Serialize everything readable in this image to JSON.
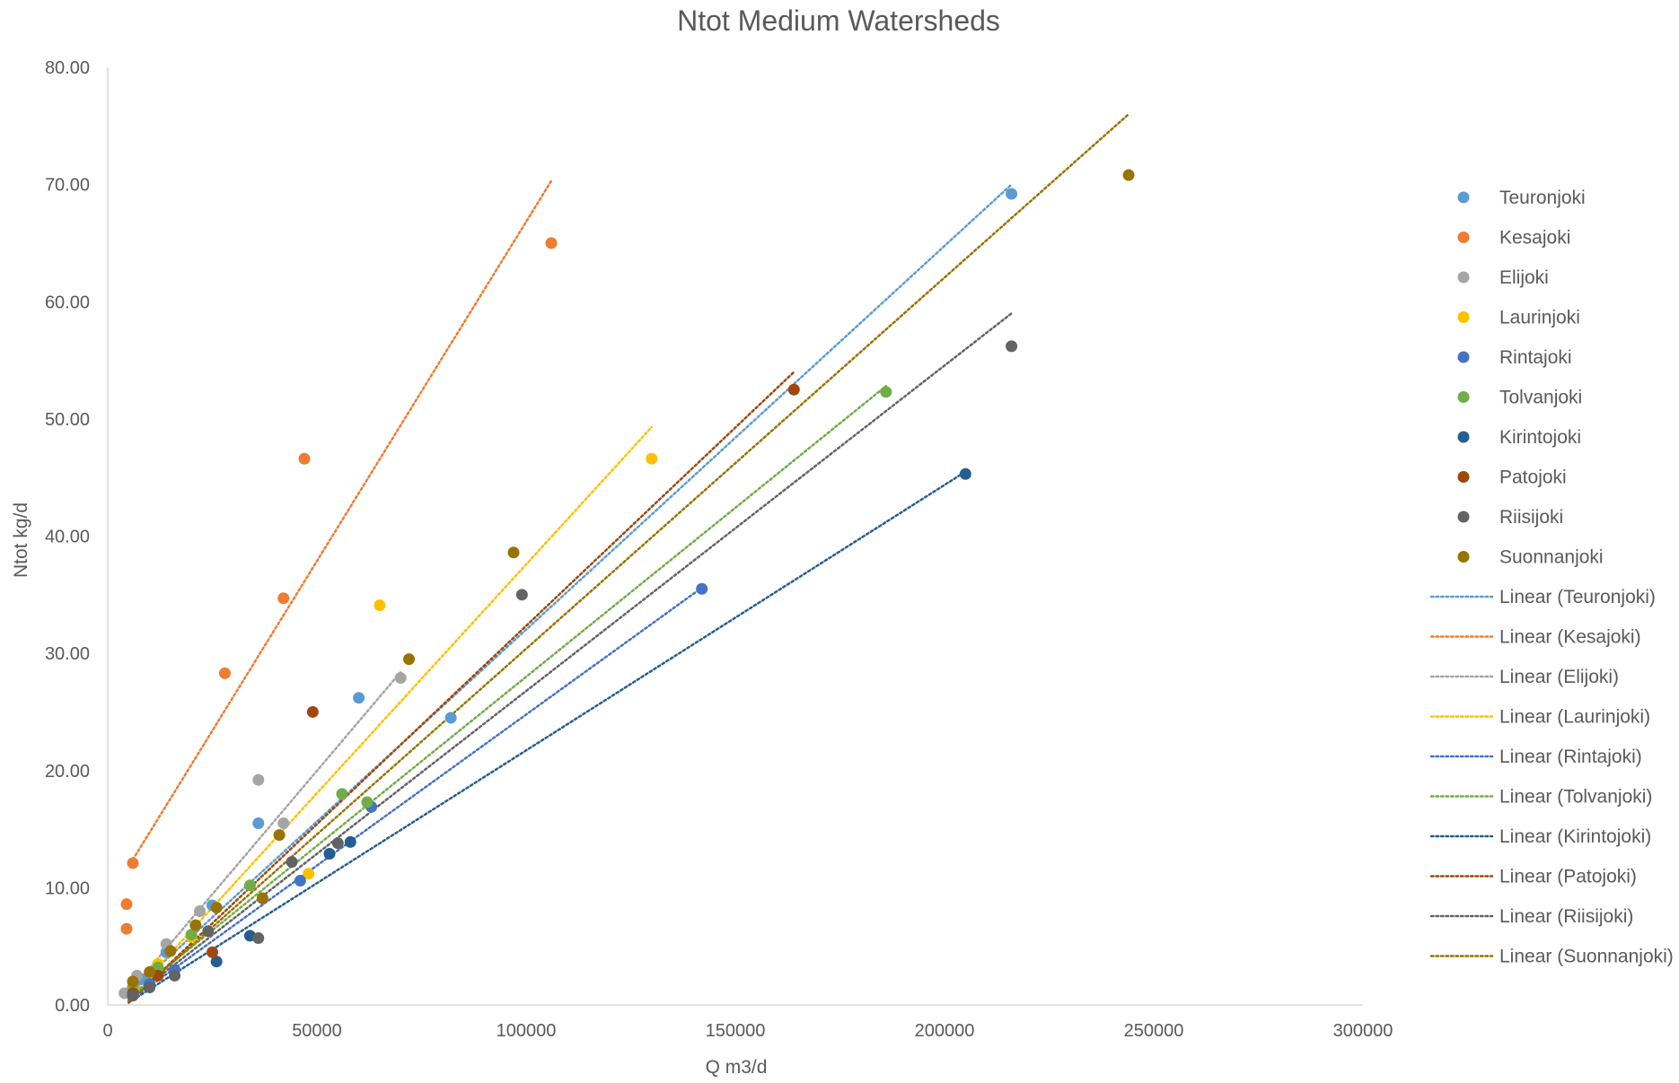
{
  "chart_data": {
    "type": "scatter",
    "title": "Ntot Medium Watersheds",
    "xlabel": "Q m3/d",
    "ylabel": "Ntot kg/d",
    "xlim": [
      0,
      300000
    ],
    "ylim": [
      0,
      80
    ],
    "xticks": [
      "0",
      "50000",
      "100000",
      "150000",
      "200000",
      "250000",
      "300000"
    ],
    "yticks": [
      "0.00",
      "10.00",
      "20.00",
      "30.00",
      "40.00",
      "50.00",
      "60.00",
      "70.00",
      "80.00"
    ],
    "grid": false,
    "legend_position": "right",
    "series": [
      {
        "name": "Teuronjoki",
        "color": "#5B9BD5",
        "points": [
          [
            216000,
            69.2
          ],
          [
            60000,
            26.2
          ],
          [
            82000,
            24.5
          ],
          [
            36000,
            15.5
          ],
          [
            25000,
            8.5
          ],
          [
            14000,
            4.5
          ],
          [
            8000,
            2.2
          ],
          [
            5000,
            1.0
          ]
        ],
        "trend": {
          "x0": 4000,
          "y0": 0.6,
          "x1": 216000,
          "y1": 70.0
        }
      },
      {
        "name": "Kesajoki",
        "color": "#ED7D31",
        "points": [
          [
            106000,
            65.0
          ],
          [
            47000,
            46.6
          ],
          [
            42000,
            34.7
          ],
          [
            28000,
            28.3
          ],
          [
            6000,
            12.1
          ],
          [
            4500,
            8.6
          ],
          [
            4500,
            6.5
          ]
        ],
        "trend": {
          "x0": 6000,
          "y0": 12.4,
          "x1": 106000,
          "y1": 70.3
        }
      },
      {
        "name": "Elijoki",
        "color": "#A5A5A5",
        "points": [
          [
            70000,
            27.9
          ],
          [
            36000,
            19.2
          ],
          [
            42000,
            15.5
          ],
          [
            22000,
            8.0
          ],
          [
            14000,
            5.2
          ],
          [
            7000,
            2.5
          ],
          [
            4000,
            1.0
          ]
        ],
        "trend": {
          "x0": 4000,
          "y0": 0.6,
          "x1": 70000,
          "y1": 28.4
        }
      },
      {
        "name": "Laurinjoki",
        "color": "#FFC000",
        "points": [
          [
            130000,
            46.6
          ],
          [
            65000,
            34.1
          ],
          [
            48000,
            11.2
          ],
          [
            20000,
            5.8
          ],
          [
            12000,
            3.5
          ],
          [
            6000,
            1.5
          ]
        ],
        "trend": {
          "x0": 5000,
          "y0": 0.5,
          "x1": 130000,
          "y1": 49.3
        }
      },
      {
        "name": "Rintajoki",
        "color": "#4472C4",
        "points": [
          [
            142000,
            35.5
          ],
          [
            63000,
            16.9
          ],
          [
            46000,
            10.6
          ],
          [
            16000,
            3.0
          ],
          [
            10000,
            1.8
          ],
          [
            6000,
            0.8
          ]
        ],
        "trend": {
          "x0": 5000,
          "y0": 0.3,
          "x1": 142000,
          "y1": 35.6
        }
      },
      {
        "name": "Tolvanjoki",
        "color": "#70AD47",
        "points": [
          [
            186000,
            52.3
          ],
          [
            56000,
            18.0
          ],
          [
            62000,
            17.3
          ],
          [
            34000,
            10.2
          ],
          [
            20000,
            6.0
          ],
          [
            12000,
            3.2
          ],
          [
            6000,
            1.5
          ]
        ],
        "trend": {
          "x0": 5000,
          "y0": 0.6,
          "x1": 186000,
          "y1": 52.8
        }
      },
      {
        "name": "Kirintojoki",
        "color": "#255E91",
        "points": [
          [
            205000,
            45.3
          ],
          [
            58000,
            13.9
          ],
          [
            53000,
            12.9
          ],
          [
            34000,
            5.9
          ],
          [
            26000,
            3.7
          ],
          [
            10000,
            1.5
          ],
          [
            6000,
            0.8
          ]
        ],
        "trend": {
          "x0": 5000,
          "y0": 0.2,
          "x1": 205000,
          "y1": 45.5
        }
      },
      {
        "name": "Patojoki",
        "color": "#9E480E",
        "points": [
          [
            164000,
            52.5
          ],
          [
            49000,
            25.0
          ],
          [
            25000,
            4.5
          ],
          [
            12000,
            2.5
          ],
          [
            6000,
            1.0
          ]
        ],
        "trend": {
          "x0": 5000,
          "y0": 0.2,
          "x1": 164000,
          "y1": 54.0
        }
      },
      {
        "name": "Riisijoki",
        "color": "#636363",
        "points": [
          [
            216000,
            56.2
          ],
          [
            99000,
            35.0
          ],
          [
            55000,
            13.8
          ],
          [
            44000,
            12.2
          ],
          [
            36000,
            5.7
          ],
          [
            24000,
            6.3
          ],
          [
            16000,
            2.5
          ],
          [
            10000,
            1.5
          ],
          [
            6000,
            0.8
          ]
        ],
        "trend": {
          "x0": 5000,
          "y0": 0.4,
          "x1": 216000,
          "y1": 59.0
        }
      },
      {
        "name": "Suonnanjoki",
        "color": "#997300",
        "points": [
          [
            244000,
            70.8
          ],
          [
            97000,
            38.6
          ],
          [
            72000,
            29.5
          ],
          [
            41000,
            14.5
          ],
          [
            37000,
            9.1
          ],
          [
            26000,
            8.3
          ],
          [
            21000,
            6.8
          ],
          [
            15000,
            4.6
          ],
          [
            10000,
            2.8
          ],
          [
            6000,
            2.0
          ]
        ],
        "trend": {
          "x0": 5000,
          "y0": 0.3,
          "x1": 244000,
          "y1": 76.0
        }
      }
    ],
    "trendline_legend": [
      "Linear (Teuronjoki)",
      "Linear (Kesajoki)",
      "Linear (Elijoki)",
      "Linear (Laurinjoki)",
      "Linear (Rintajoki)",
      "Linear (Tolvanjoki)",
      "Linear (Kirintojoki)",
      "Linear (Patojoki)",
      "Linear (Riisijoki)",
      "Linear (Suonnanjoki)"
    ]
  }
}
